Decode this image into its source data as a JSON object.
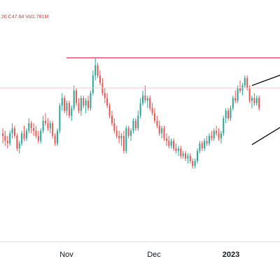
{
  "header": {
    "legend_text": ".26  C47.64  Vol1.781M"
  },
  "chart_data": {
    "type": "candlestick",
    "x_tick_labels": [
      "Nov",
      "Dec",
      "2023"
    ],
    "resistance_level": 73.0,
    "reference_level": 61.0,
    "ylim": [
      0,
      96
    ],
    "grid": false,
    "colors": {
      "up": "#26a69a",
      "down": "#ef5350",
      "resistance": "#e04f6a",
      "reference": "#f7c5cf",
      "trendline": "#000000"
    },
    "trendlines": [
      {
        "name": "upper-channel",
        "from": [
          105,
          62.0
        ],
        "to": [
          118,
          66.5
        ]
      },
      {
        "name": "lower-channel",
        "from": [
          105,
          38.5
        ],
        "to": [
          118,
          46.0
        ]
      }
    ],
    "candles": [
      {
        "o": 43,
        "h": 45,
        "l": 39,
        "c": 42
      },
      {
        "o": 42,
        "h": 44,
        "l": 38,
        "c": 40
      },
      {
        "o": 40,
        "h": 42,
        "l": 37,
        "c": 39
      },
      {
        "o": 39,
        "h": 44,
        "l": 38,
        "c": 43
      },
      {
        "o": 43,
        "h": 47,
        "l": 41,
        "c": 45
      },
      {
        "o": 45,
        "h": 46,
        "l": 41,
        "c": 42
      },
      {
        "o": 42,
        "h": 43,
        "l": 36,
        "c": 37
      },
      {
        "o": 37,
        "h": 40,
        "l": 35,
        "c": 39
      },
      {
        "o": 39,
        "h": 44,
        "l": 38,
        "c": 43
      },
      {
        "o": 43,
        "h": 46,
        "l": 40,
        "c": 41
      },
      {
        "o": 41,
        "h": 45,
        "l": 40,
        "c": 44
      },
      {
        "o": 44,
        "h": 49,
        "l": 43,
        "c": 47
      },
      {
        "o": 47,
        "h": 48,
        "l": 43,
        "c": 45
      },
      {
        "o": 45,
        "h": 47,
        "l": 42,
        "c": 44
      },
      {
        "o": 44,
        "h": 46,
        "l": 41,
        "c": 42
      },
      {
        "o": 42,
        "h": 44,
        "l": 39,
        "c": 40
      },
      {
        "o": 40,
        "h": 45,
        "l": 39,
        "c": 44
      },
      {
        "o": 44,
        "h": 50,
        "l": 43,
        "c": 48
      },
      {
        "o": 48,
        "h": 51,
        "l": 46,
        "c": 47
      },
      {
        "o": 47,
        "h": 49,
        "l": 44,
        "c": 45
      },
      {
        "o": 45,
        "h": 48,
        "l": 43,
        "c": 47
      },
      {
        "o": 47,
        "h": 48,
        "l": 41,
        "c": 42
      },
      {
        "o": 42,
        "h": 43,
        "l": 38,
        "c": 39
      },
      {
        "o": 39,
        "h": 45,
        "l": 38,
        "c": 44
      },
      {
        "o": 44,
        "h": 55,
        "l": 43,
        "c": 54
      },
      {
        "o": 54,
        "h": 59,
        "l": 52,
        "c": 57
      },
      {
        "o": 57,
        "h": 58,
        "l": 51,
        "c": 52
      },
      {
        "o": 52,
        "h": 56,
        "l": 50,
        "c": 55
      },
      {
        "o": 55,
        "h": 56,
        "l": 49,
        "c": 50
      },
      {
        "o": 50,
        "h": 54,
        "l": 48,
        "c": 53
      },
      {
        "o": 53,
        "h": 62,
        "l": 52,
        "c": 60
      },
      {
        "o": 60,
        "h": 61,
        "l": 54,
        "c": 55
      },
      {
        "o": 55,
        "h": 57,
        "l": 51,
        "c": 52
      },
      {
        "o": 52,
        "h": 58,
        "l": 50,
        "c": 57
      },
      {
        "o": 57,
        "h": 58,
        "l": 53,
        "c": 54
      },
      {
        "o": 54,
        "h": 57,
        "l": 51,
        "c": 56
      },
      {
        "o": 56,
        "h": 58,
        "l": 52,
        "c": 53
      },
      {
        "o": 53,
        "h": 60,
        "l": 52,
        "c": 59
      },
      {
        "o": 59,
        "h": 68,
        "l": 58,
        "c": 66
      },
      {
        "o": 66,
        "h": 73,
        "l": 64,
        "c": 70
      },
      {
        "o": 70,
        "h": 71,
        "l": 65,
        "c": 66
      },
      {
        "o": 66,
        "h": 68,
        "l": 62,
        "c": 63
      },
      {
        "o": 63,
        "h": 65,
        "l": 58,
        "c": 59
      },
      {
        "o": 59,
        "h": 61,
        "l": 55,
        "c": 57
      },
      {
        "o": 57,
        "h": 59,
        "l": 53,
        "c": 54
      },
      {
        "o": 54,
        "h": 55,
        "l": 49,
        "c": 50
      },
      {
        "o": 50,
        "h": 52,
        "l": 46,
        "c": 47
      },
      {
        "o": 47,
        "h": 49,
        "l": 43,
        "c": 44
      },
      {
        "o": 44,
        "h": 46,
        "l": 41,
        "c": 42
      },
      {
        "o": 42,
        "h": 44,
        "l": 39,
        "c": 41
      },
      {
        "o": 41,
        "h": 43,
        "l": 38,
        "c": 42
      },
      {
        "o": 42,
        "h": 44,
        "l": 35,
        "c": 36
      },
      {
        "o": 36,
        "h": 46,
        "l": 35,
        "c": 45
      },
      {
        "o": 45,
        "h": 46,
        "l": 41,
        "c": 42
      },
      {
        "o": 42,
        "h": 45,
        "l": 40,
        "c": 44
      },
      {
        "o": 44,
        "h": 49,
        "l": 43,
        "c": 48
      },
      {
        "o": 48,
        "h": 49,
        "l": 44,
        "c": 45
      },
      {
        "o": 45,
        "h": 52,
        "l": 44,
        "c": 50
      },
      {
        "o": 50,
        "h": 57,
        "l": 49,
        "c": 55
      },
      {
        "o": 55,
        "h": 60,
        "l": 54,
        "c": 58
      },
      {
        "o": 58,
        "h": 62,
        "l": 55,
        "c": 56
      },
      {
        "o": 56,
        "h": 58,
        "l": 53,
        "c": 57
      },
      {
        "o": 57,
        "h": 58,
        "l": 52,
        "c": 53
      },
      {
        "o": 53,
        "h": 55,
        "l": 50,
        "c": 51
      },
      {
        "o": 51,
        "h": 53,
        "l": 47,
        "c": 48
      },
      {
        "o": 48,
        "h": 50,
        "l": 45,
        "c": 46
      },
      {
        "o": 46,
        "h": 48,
        "l": 42,
        "c": 43
      },
      {
        "o": 43,
        "h": 46,
        "l": 41,
        "c": 45
      },
      {
        "o": 45,
        "h": 46,
        "l": 40,
        "c": 41
      },
      {
        "o": 41,
        "h": 43,
        "l": 38,
        "c": 40
      },
      {
        "o": 40,
        "h": 42,
        "l": 37,
        "c": 38
      },
      {
        "o": 38,
        "h": 41,
        "l": 37,
        "c": 40
      },
      {
        "o": 40,
        "h": 41,
        "l": 36,
        "c": 37
      },
      {
        "o": 37,
        "h": 39,
        "l": 35,
        "c": 36
      },
      {
        "o": 36,
        "h": 38,
        "l": 34,
        "c": 37
      },
      {
        "o": 37,
        "h": 38,
        "l": 33,
        "c": 34
      },
      {
        "o": 34,
        "h": 36,
        "l": 33,
        "c": 35
      },
      {
        "o": 35,
        "h": 36,
        "l": 32,
        "c": 33
      },
      {
        "o": 33,
        "h": 35,
        "l": 31,
        "c": 34
      },
      {
        "o": 34,
        "h": 35,
        "l": 31,
        "c": 32
      },
      {
        "o": 32,
        "h": 33,
        "l": 29,
        "c": 30
      },
      {
        "o": 30,
        "h": 33,
        "l": 29,
        "c": 32
      },
      {
        "o": 32,
        "h": 37,
        "l": 31,
        "c": 36
      },
      {
        "o": 36,
        "h": 40,
        "l": 35,
        "c": 39
      },
      {
        "o": 39,
        "h": 40,
        "l": 36,
        "c": 37
      },
      {
        "o": 37,
        "h": 41,
        "l": 36,
        "c": 40
      },
      {
        "o": 40,
        "h": 42,
        "l": 38,
        "c": 39
      },
      {
        "o": 39,
        "h": 43,
        "l": 38,
        "c": 42
      },
      {
        "o": 42,
        "h": 44,
        "l": 40,
        "c": 41
      },
      {
        "o": 41,
        "h": 45,
        "l": 40,
        "c": 44
      },
      {
        "o": 44,
        "h": 46,
        "l": 42,
        "c": 43
      },
      {
        "o": 43,
        "h": 45,
        "l": 40,
        "c": 41
      },
      {
        "o": 41,
        "h": 44,
        "l": 39,
        "c": 43
      },
      {
        "o": 43,
        "h": 50,
        "l": 42,
        "c": 49
      },
      {
        "o": 49,
        "h": 53,
        "l": 47,
        "c": 52
      },
      {
        "o": 52,
        "h": 53,
        "l": 48,
        "c": 49
      },
      {
        "o": 49,
        "h": 54,
        "l": 48,
        "c": 53
      },
      {
        "o": 53,
        "h": 58,
        "l": 52,
        "c": 57
      },
      {
        "o": 57,
        "h": 60,
        "l": 55,
        "c": 56
      },
      {
        "o": 56,
        "h": 62,
        "l": 55,
        "c": 61
      },
      {
        "o": 61,
        "h": 64,
        "l": 59,
        "c": 60
      },
      {
        "o": 60,
        "h": 63,
        "l": 58,
        "c": 62
      },
      {
        "o": 62,
        "h": 66,
        "l": 61,
        "c": 65
      },
      {
        "o": 65,
        "h": 66,
        "l": 60,
        "c": 61
      },
      {
        "o": 61,
        "h": 62,
        "l": 55,
        "c": 56
      },
      {
        "o": 56,
        "h": 58,
        "l": 53,
        "c": 57
      },
      {
        "o": 57,
        "h": 59,
        "l": 54,
        "c": 55
      },
      {
        "o": 55,
        "h": 58,
        "l": 54,
        "c": 57
      },
      {
        "o": 57,
        "h": 58,
        "l": 52,
        "c": 53
      }
    ]
  }
}
